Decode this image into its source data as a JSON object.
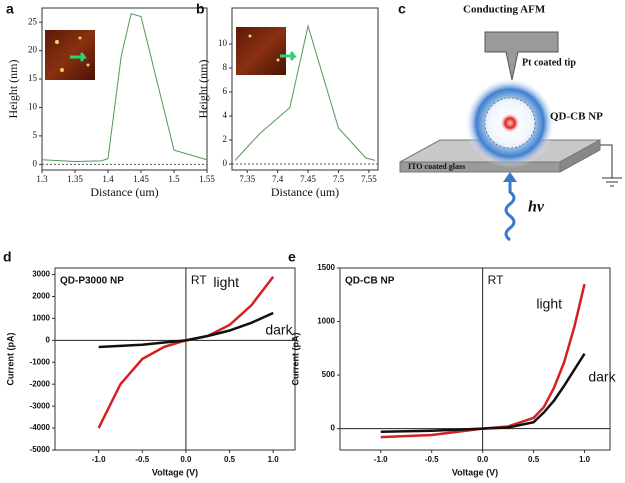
{
  "chart_data": [
    {
      "type": "line",
      "panel": "a",
      "xlabel": "Distance (um)",
      "ylabel": "Height (nm)",
      "x": [
        1.3,
        1.35,
        1.39,
        1.4,
        1.42,
        1.435,
        1.45,
        1.5,
        1.55
      ],
      "series": [
        {
          "color": "#4f9a55",
          "values": [
            0.8,
            0.5,
            0.6,
            1,
            19,
            26.5,
            26,
            2.5,
            0.8
          ]
        }
      ],
      "xlim": [
        1.3,
        1.55
      ],
      "ylim": [
        -1,
        27.5
      ],
      "xticks": [
        1.3,
        1.35,
        1.4,
        1.45,
        1.5,
        1.55
      ],
      "yticks": [
        0,
        5,
        10,
        15,
        20,
        25
      ],
      "zero_line": true
    },
    {
      "type": "line",
      "panel": "b",
      "xlabel": "Distance (um)",
      "ylabel": "Height (nm)",
      "x": [
        7.33,
        7.37,
        7.42,
        7.45,
        7.5,
        7.545,
        7.56
      ],
      "series": [
        {
          "color": "#4f9a55",
          "values": [
            0.3,
            2.5,
            4.7,
            11.5,
            3,
            0.5,
            0.3
          ]
        }
      ],
      "xlim": [
        7.325,
        7.565
      ],
      "ylim": [
        -0.5,
        13
      ],
      "xticks": [
        7.35,
        7.4,
        7.45,
        7.5,
        7.55
      ],
      "yticks": [
        0,
        2,
        4,
        6,
        8,
        10
      ],
      "zero_line": true
    },
    {
      "type": "line",
      "panel": "d",
      "title": "QD-P3000 NP",
      "annotation": "RT",
      "xlabel": "Voltage (V)",
      "ylabel": "Current (pA)",
      "x": [
        -1,
        -0.75,
        -0.5,
        -0.25,
        0,
        0.25,
        0.5,
        0.75,
        1
      ],
      "series": [
        {
          "name": "light",
          "color": "#d42020",
          "values": [
            -4000,
            -2000,
            -850,
            -300,
            0,
            200,
            700,
            1600,
            2900
          ]
        },
        {
          "name": "dark",
          "color": "#111111",
          "values": [
            -300,
            -250,
            -200,
            -100,
            0,
            200,
            450,
            800,
            1250
          ]
        }
      ],
      "xlim": [
        -1.5,
        1.25
      ],
      "ylim": [
        -5000,
        3300
      ],
      "xticks": [
        {
          "value": -1,
          "label": "-1.0"
        },
        -0.5,
        {
          "value": 0,
          "label": "0.0"
        },
        0.5,
        {
          "value": 1,
          "label": "1.0"
        }
      ],
      "yticks": [
        -5000,
        -4000,
        -3000,
        -2000,
        -1000,
        0,
        1000,
        2000,
        3000
      ],
      "zero_axes": true
    },
    {
      "type": "line",
      "panel": "e",
      "title": "QD-CB NP",
      "annotation": "RT",
      "xlabel": "Voltage (V)",
      "ylabel": "Current (pA)",
      "x": [
        -1,
        -0.5,
        0,
        0.25,
        0.5,
        0.6,
        0.7,
        0.8,
        0.9,
        1
      ],
      "series": [
        {
          "name": "light",
          "color": "#d42020",
          "values": [
            -80,
            -60,
            0,
            20,
            100,
            200,
            380,
            620,
            950,
            1350
          ]
        },
        {
          "name": "dark",
          "color": "#111111",
          "values": [
            -30,
            -20,
            0,
            10,
            60,
            150,
            260,
            400,
            550,
            700
          ]
        }
      ],
      "xlim": [
        -1.4,
        1.25
      ],
      "ylim": [
        -200,
        1500
      ],
      "xticks": [
        {
          "value": -1,
          "label": "-1.0"
        },
        -0.5,
        {
          "value": 0,
          "label": "0.0"
        },
        0.5,
        {
          "value": 1,
          "label": "1.0"
        }
      ],
      "yticks": [
        0,
        500,
        1000,
        1500
      ],
      "zero_axes": true
    }
  ],
  "diagram": {
    "panel": "c",
    "labels": [
      "Conducting AFM",
      "Pt coated tip",
      "QD-CB NP",
      "ITO coated glass",
      "hv"
    ]
  }
}
